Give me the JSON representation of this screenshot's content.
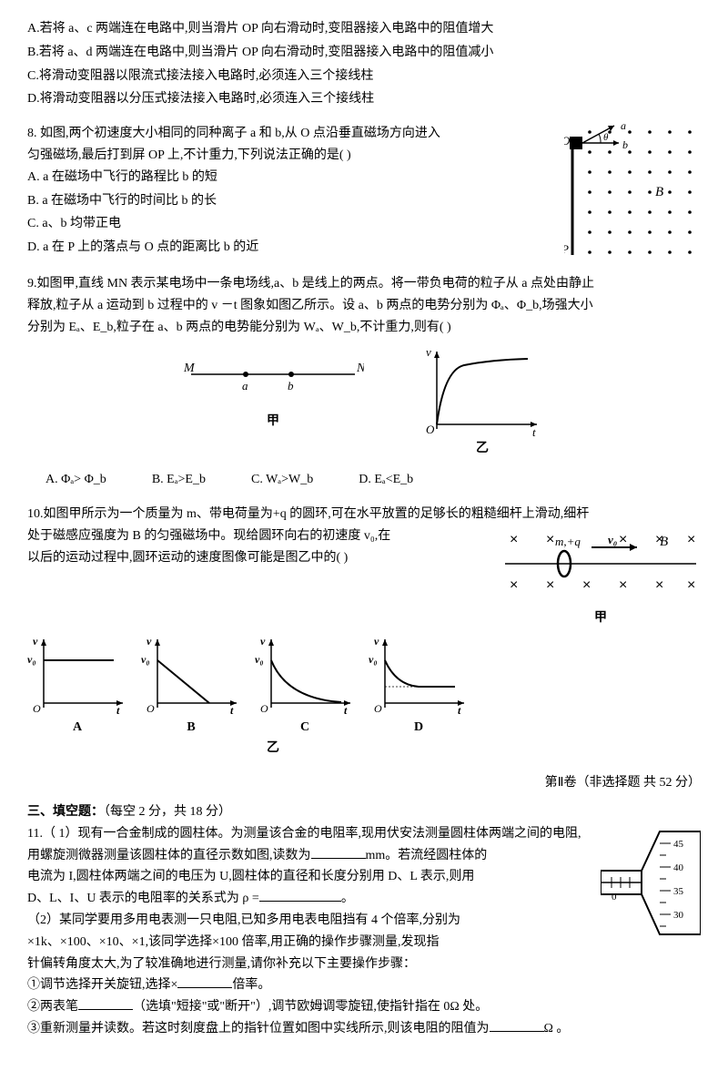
{
  "q7": {
    "A": "A.若将 a、c 两端连在电路中,则当滑片 OP 向右滑动时,变阻器接入电路中的阻值增大",
    "B": "B.若将 a、d 两端连在电路中,则当滑片 OP 向右滑动时,变阻器接入电路中的阻值减小",
    "C": "C.将滑动变阻器以限流式接法接入电路时,必须连入三个接线柱",
    "D": "D.将滑动变阻器以分压式接法接入电路时,必须连入三个接线柱"
  },
  "q8": {
    "stem1": "8.  如图,两个初速度大小相同的同种离子 a 和 b,从 O 点沿垂直磁场方向进入",
    "stem2": "匀强磁场,最后打到屏 OP 上,不计重力,下列说法正确的是(     )",
    "A": "A.  a 在磁场中飞行的路程比 b 的短",
    "B": "B. a 在磁场中飞行的时间比 b 的长",
    "C": "C.  a、b 均带正电",
    "D": "D.  a 在 P 上的落点与 O 点的距离比 b 的近",
    "diagram": {
      "dotColor": "#000",
      "bg": "#fff",
      "O": "O",
      "P": "P",
      "B": "B",
      "a": "a",
      "b": "b"
    }
  },
  "q9": {
    "stem1": "9.如图甲,直线 MN 表示某电场中一条电场线,a、b 是线上的两点。将一带负电荷的粒子从 a 点处由静止",
    "stem2": "释放,粒子从 a 运动到 b 过程中的 v －t 图象如图乙所示。设 a、b 两点的电势分别为 Φₐ、Φ_b,场强大小",
    "stem3": "分别为 Eₐ、E_b,粒子在 a、b 两点的电势能分别为 Wₐ、W_b,不计重力,则有(     )",
    "fig": {
      "M": "M",
      "N": "N",
      "a": "a",
      "b": "b",
      "jia": "甲",
      "yi": "乙",
      "v": "v",
      "t": "t",
      "O": "O"
    },
    "A": "A.  Φₐ> Φ_b",
    "B": "B. Eₐ>E_b",
    "C": "C.     Wₐ>W_b",
    "D": "D.  Eₐ<E_b"
  },
  "q10": {
    "stem1": "10.如图甲所示为一个质量为 m、带电荷量为+q 的圆环,可在水平放置的足够长的粗糙细杆上滑动,细杆",
    "stem2": "处于磁感应强度为 B 的匀强磁场中。现给圆环向右的初速度 v₀,在",
    "stem3": "以后的运动过程中,圆环运动的速度图像可能是图乙中的(     )",
    "fig": {
      "m": "m,+q",
      "v0": "v₀",
      "B": "B",
      "jia": "甲",
      "yi": "乙",
      "v": "v",
      "t": "t",
      "O": "O",
      "labels": [
        "A",
        "B",
        "C",
        "D"
      ]
    }
  },
  "partII": "第Ⅱ卷（非选择题   共 52 分）",
  "s3": {
    "title": "三、填空题：",
    "note": "（每空 2 分，共 18 分）"
  },
  "q11": {
    "p1": "11.（  1）现有一合金制成的圆柱体。为测量该合金的电阻率,现用伏安法测量圆柱体两端之间的电阻,",
    "p2a": "用螺旋测微器测量该圆柱体的直径示数如图,读数为",
    "p2b": "mm。若流经圆柱体的",
    "p3": "电流为 I,圆柱体两端之间的电压为 U,圆柱体的直径和长度分别用 D、L 表示,则用",
    "p4a": "D、L、I、U 表示的电阻率的关系式为 ρ =",
    "p4b": "。",
    "p5": "（2）某同学要用多用电表测一只电阻,已知多用电表电阻挡有 4 个倍率,分别为",
    "p6": "×1k、×100、×10、×1,该同学选择×100 倍率,用正确的操作步骤测量,发现指",
    "p7": "针偏转角度太大,为了较准确地进行测量,请你补充以下主要操作步骤：",
    "p8a": "①调节选择开关旋钮,选择×",
    "p8b": "倍率。",
    "p9a": "②两表笔",
    "p9b": "（选填\"短接\"或\"断开\"）,调节欧姆调零旋钮,使指针指在 0Ω 处。",
    "p10a": "③重新测量并读数。若这时刻度盘上的指针位置如图中实线所示,则该电阻的阻值为",
    "p10b": "Ω 。",
    "micrometer": {
      "ticks": [
        "45",
        "40",
        "35",
        "30"
      ],
      "main": "0"
    }
  },
  "colors": {
    "text": "#000",
    "line": "#000",
    "bg": "#fff"
  }
}
